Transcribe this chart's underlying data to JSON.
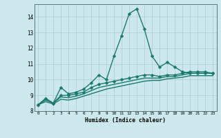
{
  "xlabel": "Humidex (Indice chaleur)",
  "background_color": "#cce8ec",
  "line_color": "#1a7a6e",
  "x": [
    0,
    1,
    2,
    3,
    4,
    5,
    6,
    7,
    8,
    9,
    10,
    11,
    12,
    13,
    14,
    15,
    16,
    17,
    18,
    19,
    20,
    21,
    22,
    23
  ],
  "series1": [
    8.4,
    8.8,
    8.5,
    9.5,
    9.1,
    9.2,
    9.4,
    9.8,
    10.3,
    10.0,
    11.5,
    12.8,
    14.2,
    14.5,
    13.2,
    11.5,
    10.8,
    11.1,
    10.8,
    10.5,
    10.4,
    10.4,
    10.4,
    10.4
  ],
  "series2": [
    8.4,
    8.8,
    8.5,
    9.0,
    9.0,
    9.1,
    9.2,
    9.5,
    9.7,
    9.8,
    9.9,
    10.0,
    10.1,
    10.2,
    10.3,
    10.3,
    10.2,
    10.3,
    10.3,
    10.4,
    10.5,
    10.5,
    10.5,
    10.4
  ],
  "series3": [
    8.4,
    8.7,
    8.5,
    8.9,
    8.85,
    8.95,
    9.1,
    9.3,
    9.5,
    9.6,
    9.7,
    9.8,
    9.9,
    10.0,
    10.1,
    10.1,
    10.1,
    10.2,
    10.2,
    10.3,
    10.4,
    10.4,
    10.4,
    10.4
  ],
  "series4": [
    8.4,
    8.6,
    8.45,
    8.75,
    8.7,
    8.8,
    8.95,
    9.1,
    9.25,
    9.4,
    9.5,
    9.6,
    9.7,
    9.8,
    9.9,
    9.95,
    9.95,
    10.05,
    10.1,
    10.15,
    10.25,
    10.25,
    10.25,
    10.25
  ],
  "ylim": [
    8,
    14.8
  ],
  "yticks": [
    8,
    9,
    10,
    11,
    12,
    13,
    14
  ],
  "xticks": [
    0,
    1,
    2,
    3,
    4,
    5,
    6,
    7,
    8,
    9,
    10,
    11,
    12,
    13,
    14,
    15,
    16,
    17,
    18,
    19,
    20,
    21,
    22,
    23
  ],
  "grid_color": "#aaccd4",
  "markersize": 2.5,
  "linewidth": 1.0
}
